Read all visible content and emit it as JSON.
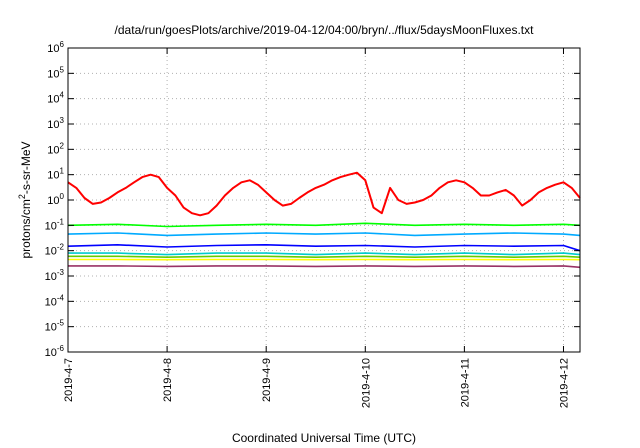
{
  "chart_data": {
    "type": "line",
    "title": "/data/run/goesPlots/archive/2019-04-12/04:00/bryn/../flux/5daysMoonFluxes.txt",
    "xlabel": "Coordinated Universal Time (UTC)",
    "ylabel": {
      "prefix": "protons/cm",
      "superscript": "2",
      "suffix": "-s-sr-MeV"
    },
    "yscale": "log",
    "ylim": [
      1e-06,
      1000000.0
    ],
    "xlim": [
      "2019-04-07T00:00",
      "2019-04-12T04:00"
    ],
    "grid": true,
    "y_ticks": [
      {
        "value": 1e-06,
        "base": "10",
        "exp": "-6"
      },
      {
        "value": 1e-05,
        "base": "10",
        "exp": "-5"
      },
      {
        "value": 0.0001,
        "base": "10",
        "exp": "-4"
      },
      {
        "value": 0.001,
        "base": "10",
        "exp": "-3"
      },
      {
        "value": 0.01,
        "base": "10",
        "exp": "-2"
      },
      {
        "value": 0.1,
        "base": "10",
        "exp": "-1"
      },
      {
        "value": 1.0,
        "base": "10",
        "exp": "0"
      },
      {
        "value": 10.0,
        "base": "10",
        "exp": "1"
      },
      {
        "value": 100.0,
        "base": "10",
        "exp": "2"
      },
      {
        "value": 1000.0,
        "base": "10",
        "exp": "3"
      },
      {
        "value": 10000.0,
        "base": "10",
        "exp": "4"
      },
      {
        "value": 100000.0,
        "base": "10",
        "exp": "5"
      },
      {
        "value": 1000000.0,
        "base": "10",
        "exp": "6"
      }
    ],
    "x_ticks": [
      {
        "value": "2019-04-07T00:00",
        "label": "2019-4-7"
      },
      {
        "value": "2019-04-08T00:00",
        "label": "2019-4-8"
      },
      {
        "value": "2019-04-09T00:00",
        "label": "2019-4-9"
      },
      {
        "value": "2019-04-10T00:00",
        "label": "2019-4-10"
      },
      {
        "value": "2019-04-11T00:00",
        "label": "2019-4-11"
      },
      {
        "value": "2019-04-12T00:00",
        "label": "2019-4-12"
      }
    ],
    "series": [
      {
        "color": "#ff0000",
        "x": [
          "2019-04-07T00:00",
          "2019-04-07T02:00",
          "2019-04-07T04:00",
          "2019-04-07T06:00",
          "2019-04-07T08:00",
          "2019-04-07T10:00",
          "2019-04-07T12:00",
          "2019-04-07T14:00",
          "2019-04-07T16:00",
          "2019-04-07T18:00",
          "2019-04-07T20:00",
          "2019-04-07T22:00",
          "2019-04-08T00:00",
          "2019-04-08T02:00",
          "2019-04-08T04:00",
          "2019-04-08T06:00",
          "2019-04-08T08:00",
          "2019-04-08T10:00",
          "2019-04-08T12:00",
          "2019-04-08T14:00",
          "2019-04-08T16:00",
          "2019-04-08T18:00",
          "2019-04-08T20:00",
          "2019-04-08T22:00",
          "2019-04-09T00:00",
          "2019-04-09T02:00",
          "2019-04-09T04:00",
          "2019-04-09T06:00",
          "2019-04-09T08:00",
          "2019-04-09T10:00",
          "2019-04-09T12:00",
          "2019-04-09T14:00",
          "2019-04-09T16:00",
          "2019-04-09T18:00",
          "2019-04-09T20:00",
          "2019-04-09T22:00",
          "2019-04-10T00:00",
          "2019-04-10T02:00",
          "2019-04-10T04:00",
          "2019-04-10T06:00",
          "2019-04-10T08:00",
          "2019-04-10T10:00",
          "2019-04-10T12:00",
          "2019-04-10T14:00",
          "2019-04-10T16:00",
          "2019-04-10T18:00",
          "2019-04-10T20:00",
          "2019-04-10T22:00",
          "2019-04-11T00:00",
          "2019-04-11T02:00",
          "2019-04-11T04:00",
          "2019-04-11T06:00",
          "2019-04-11T08:00",
          "2019-04-11T10:00",
          "2019-04-11T12:00",
          "2019-04-11T14:00",
          "2019-04-11T16:00",
          "2019-04-11T18:00",
          "2019-04-11T20:00",
          "2019-04-11T22:00",
          "2019-04-12T00:00",
          "2019-04-12T02:00",
          "2019-04-12T04:00"
        ],
        "values": [
          5,
          3,
          1.2,
          0.7,
          0.8,
          1.2,
          2,
          3,
          5,
          8,
          10,
          8,
          3,
          1.5,
          0.5,
          0.3,
          0.25,
          0.3,
          0.6,
          1.5,
          3,
          5,
          6,
          4,
          2,
          1,
          0.6,
          0.7,
          1.2,
          2,
          3,
          4,
          6,
          8,
          10,
          12,
          6,
          0.5,
          0.3,
          3,
          1,
          0.7,
          0.8,
          1,
          1.5,
          3,
          5,
          6,
          5,
          3,
          1.5,
          1.5,
          2,
          2.5,
          1.5,
          0.6,
          1,
          2,
          3,
          4,
          5,
          3,
          1.2
        ]
      },
      {
        "color": "#00ff00",
        "x": [
          "2019-04-07T00:00",
          "2019-04-07T12:00",
          "2019-04-08T00:00",
          "2019-04-08T12:00",
          "2019-04-09T00:00",
          "2019-04-09T12:00",
          "2019-04-10T00:00",
          "2019-04-10T12:00",
          "2019-04-11T00:00",
          "2019-04-11T12:00",
          "2019-04-12T00:00",
          "2019-04-12T04:00"
        ],
        "values": [
          0.1,
          0.11,
          0.09,
          0.1,
          0.11,
          0.1,
          0.12,
          0.1,
          0.11,
          0.1,
          0.11,
          0.1
        ]
      },
      {
        "color": "#00aaff",
        "x": [
          "2019-04-07T00:00",
          "2019-04-07T12:00",
          "2019-04-08T00:00",
          "2019-04-08T12:00",
          "2019-04-09T00:00",
          "2019-04-09T12:00",
          "2019-04-10T00:00",
          "2019-04-10T12:00",
          "2019-04-11T00:00",
          "2019-04-11T12:00",
          "2019-04-12T00:00",
          "2019-04-12T04:00"
        ],
        "values": [
          0.045,
          0.05,
          0.04,
          0.045,
          0.05,
          0.045,
          0.05,
          0.04,
          0.045,
          0.05,
          0.045,
          0.04
        ]
      },
      {
        "color": "#0000ff",
        "x": [
          "2019-04-07T00:00",
          "2019-04-07T12:00",
          "2019-04-08T00:00",
          "2019-04-08T12:00",
          "2019-04-09T00:00",
          "2019-04-09T12:00",
          "2019-04-10T00:00",
          "2019-04-10T12:00",
          "2019-04-11T00:00",
          "2019-04-11T12:00",
          "2019-04-12T00:00",
          "2019-04-12T04:00"
        ],
        "values": [
          0.015,
          0.017,
          0.014,
          0.016,
          0.017,
          0.015,
          0.016,
          0.014,
          0.016,
          0.015,
          0.016,
          0.01
        ]
      },
      {
        "color": "#00cccc",
        "x": [
          "2019-04-07T00:00",
          "2019-04-07T12:00",
          "2019-04-08T00:00",
          "2019-04-08T12:00",
          "2019-04-09T00:00",
          "2019-04-09T12:00",
          "2019-04-10T00:00",
          "2019-04-10T12:00",
          "2019-04-11T00:00",
          "2019-04-11T12:00",
          "2019-04-12T00:00",
          "2019-04-12T04:00"
        ],
        "values": [
          0.008,
          0.008,
          0.007,
          0.008,
          0.008,
          0.007,
          0.008,
          0.007,
          0.008,
          0.007,
          0.008,
          0.007
        ]
      },
      {
        "color": "#66cc00",
        "x": [
          "2019-04-07T00:00",
          "2019-04-07T12:00",
          "2019-04-08T00:00",
          "2019-04-08T12:00",
          "2019-04-09T00:00",
          "2019-04-09T12:00",
          "2019-04-10T00:00",
          "2019-04-10T12:00",
          "2019-04-11T00:00",
          "2019-04-11T12:00",
          "2019-04-12T00:00",
          "2019-04-12T04:00"
        ],
        "values": [
          0.006,
          0.006,
          0.0055,
          0.006,
          0.006,
          0.0055,
          0.006,
          0.0055,
          0.006,
          0.0055,
          0.006,
          0.0055
        ]
      },
      {
        "color": "#ffff00",
        "x": [
          "2019-04-07T00:00",
          "2019-04-07T12:00",
          "2019-04-08T00:00",
          "2019-04-08T12:00",
          "2019-04-09T00:00",
          "2019-04-09T12:00",
          "2019-04-10T00:00",
          "2019-04-10T12:00",
          "2019-04-11T00:00",
          "2019-04-11T12:00",
          "2019-04-12T00:00",
          "2019-04-12T04:00"
        ],
        "values": [
          0.0045,
          0.0045,
          0.0044,
          0.0045,
          0.0045,
          0.0044,
          0.0045,
          0.0044,
          0.0045,
          0.0044,
          0.0045,
          0.0044
        ]
      },
      {
        "color": "#993366",
        "x": [
          "2019-04-07T00:00",
          "2019-04-07T12:00",
          "2019-04-08T00:00",
          "2019-04-08T12:00",
          "2019-04-09T00:00",
          "2019-04-09T12:00",
          "2019-04-10T00:00",
          "2019-04-10T12:00",
          "2019-04-11T00:00",
          "2019-04-11T12:00",
          "2019-04-12T00:00",
          "2019-04-12T04:00"
        ],
        "values": [
          0.0025,
          0.0025,
          0.0024,
          0.0025,
          0.0025,
          0.0024,
          0.0025,
          0.0024,
          0.0025,
          0.0024,
          0.0025,
          0.0022
        ]
      }
    ]
  }
}
